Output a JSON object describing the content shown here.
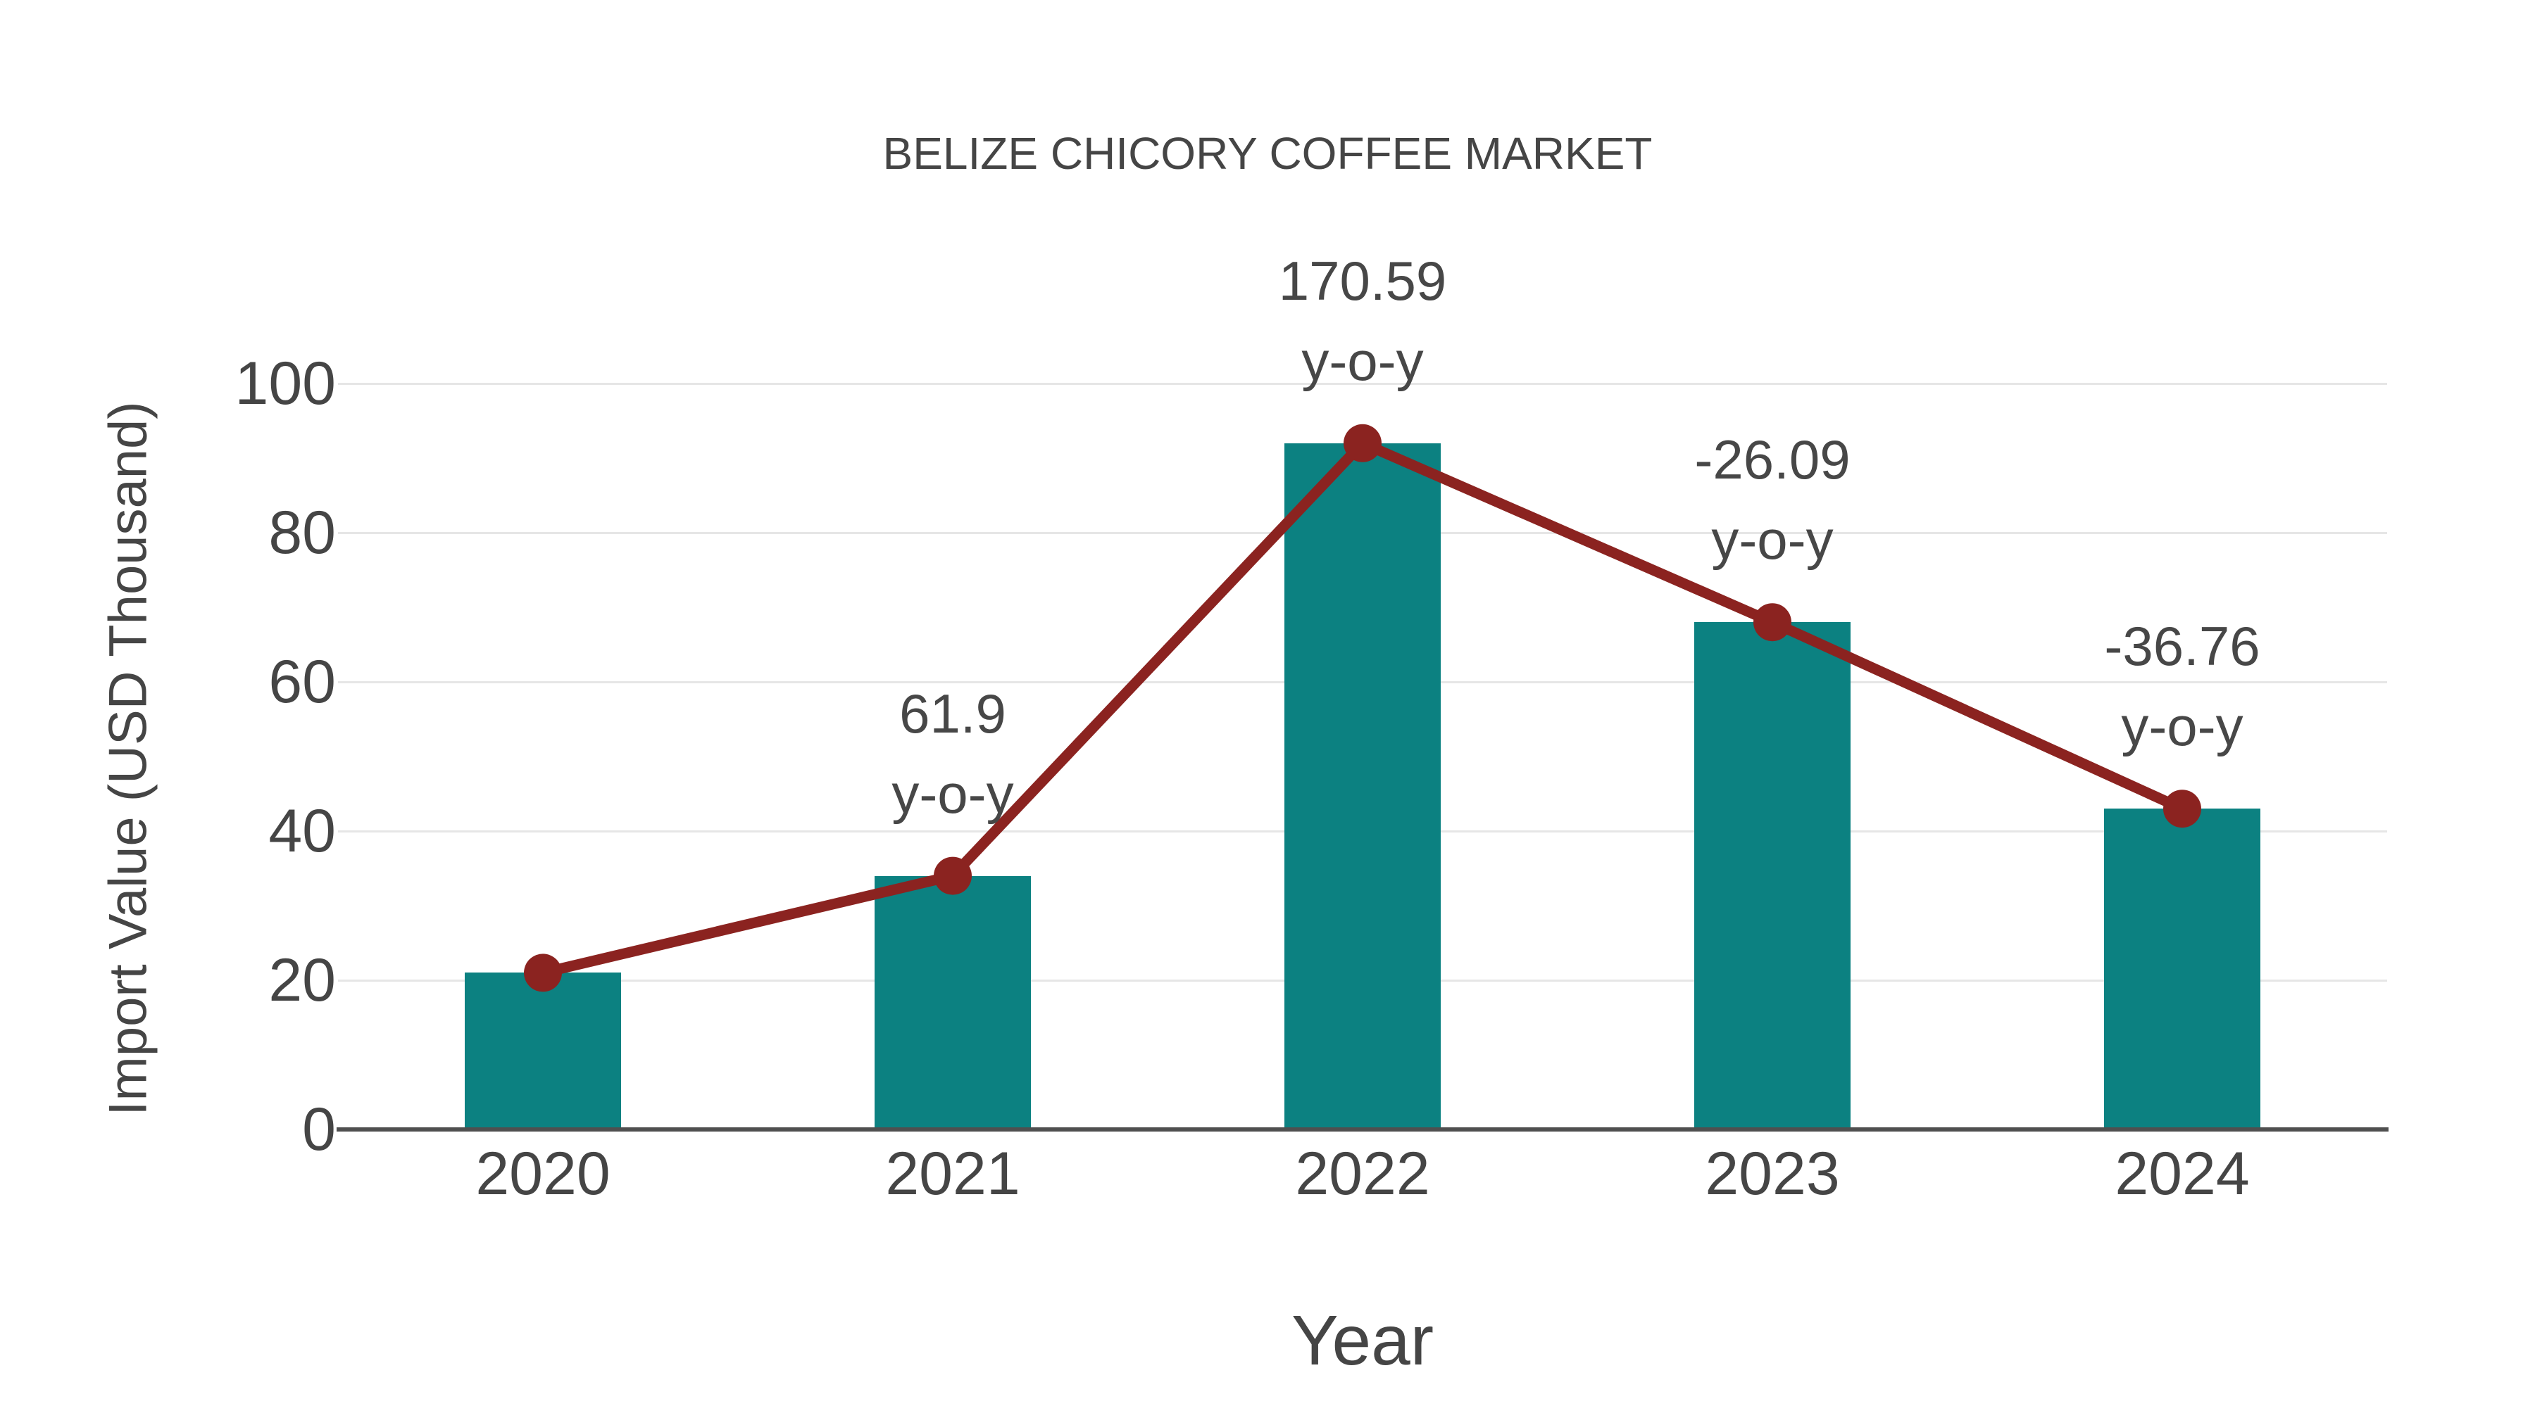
{
  "title": "BELIZE CHICORY COFFEE MARKET",
  "colors": {
    "bar": "#0c8181",
    "line": "#8b2320",
    "grid": "#e6e6e6",
    "axis": "#4f4f4f",
    "text": "#454545"
  },
  "chart_data": {
    "type": "bar",
    "title": "BELIZE CHICORY COFFEE MARKET",
    "xlabel": "Year",
    "ylabel": "Import Value (USD Thousand)",
    "categories": [
      "2020",
      "2021",
      "2022",
      "2023",
      "2024"
    ],
    "series": [
      {
        "name": "Import Value (USD Thousand)",
        "type": "bar",
        "color": "#0c8181",
        "values": [
          21,
          34,
          92,
          68,
          43
        ]
      },
      {
        "name": "Import Value trend",
        "type": "line",
        "color": "#8b2320",
        "values": [
          21,
          34,
          92,
          68,
          43
        ]
      }
    ],
    "yoy_change_percent": [
      null,
      61.9,
      170.59,
      -26.09,
      -36.76
    ],
    "annotations": [
      {
        "category": "2021",
        "lines": [
          "61.9",
          "y-o-y"
        ]
      },
      {
        "category": "2022",
        "lines": [
          "170.59",
          "y-o-y"
        ]
      },
      {
        "category": "2023",
        "lines": [
          "-26.09",
          "y-o-y"
        ]
      },
      {
        "category": "2024",
        "lines": [
          "-36.76",
          "y-o-y"
        ]
      }
    ],
    "ylim": [
      0,
      100
    ],
    "yticks": [
      0,
      20,
      40,
      60,
      80,
      100
    ],
    "grid": true,
    "legend_position": "none"
  }
}
